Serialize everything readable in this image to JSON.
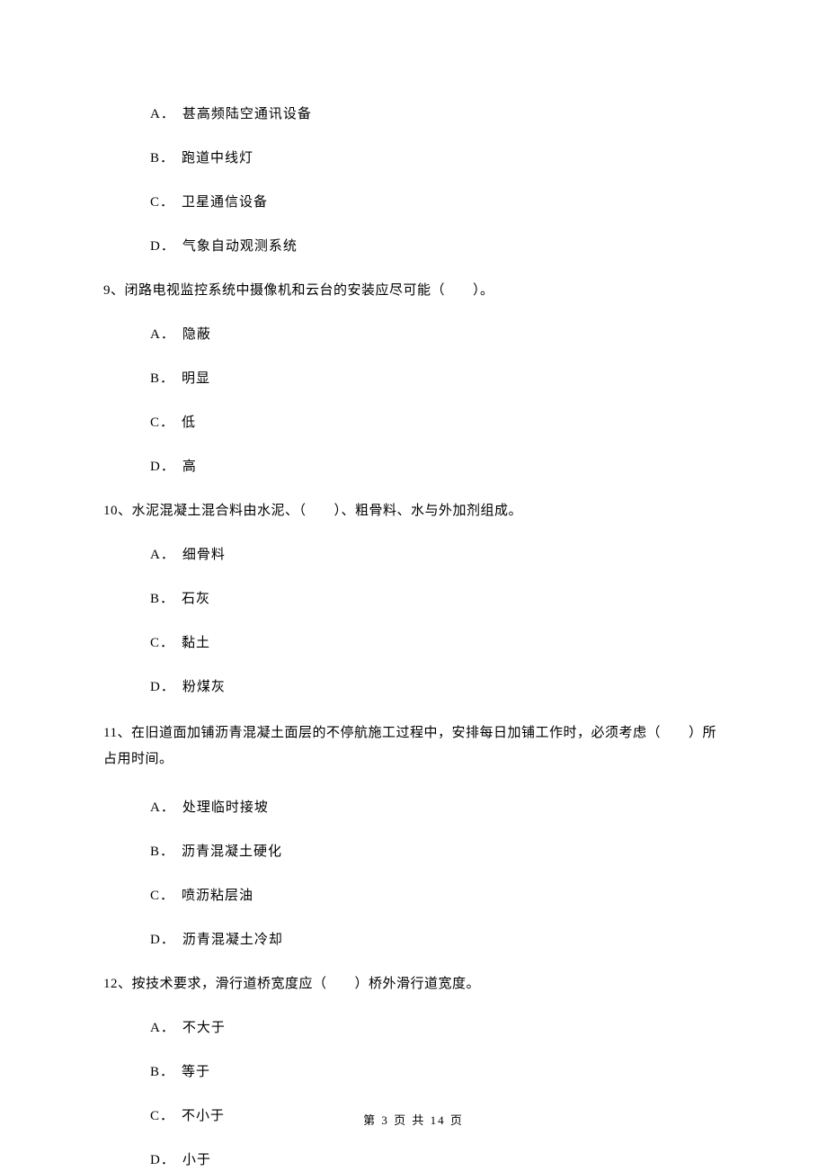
{
  "q8": {
    "options": {
      "A": {
        "letter": "A．",
        "text": "甚高频陆空通讯设备"
      },
      "B": {
        "letter": "B．",
        "text": "跑道中线灯"
      },
      "C": {
        "letter": "C．",
        "text": "卫星通信设备"
      },
      "D": {
        "letter": "D．",
        "text": "气象自动观测系统"
      }
    }
  },
  "q9": {
    "stem": "9、闭路电视监控系统中摄像机和云台的安装应尽可能（　　）。",
    "options": {
      "A": {
        "letter": "A．",
        "text": "隐蔽"
      },
      "B": {
        "letter": "B．",
        "text": "明显"
      },
      "C": {
        "letter": "C．",
        "text": "低"
      },
      "D": {
        "letter": "D．",
        "text": "高"
      }
    }
  },
  "q10": {
    "stem": "10、水泥混凝土混合料由水泥、（　　）、粗骨料、水与外加剂组成。",
    "options": {
      "A": {
        "letter": "A．",
        "text": "细骨料"
      },
      "B": {
        "letter": "B．",
        "text": "石灰"
      },
      "C": {
        "letter": "C．",
        "text": "黏土"
      },
      "D": {
        "letter": "D．",
        "text": "粉煤灰"
      }
    }
  },
  "q11": {
    "stem": "11、在旧道面加铺沥青混凝土面层的不停航施工过程中，安排每日加铺工作时，必须考虑（　　）所占用时间。",
    "options": {
      "A": {
        "letter": "A．",
        "text": "处理临时接坡"
      },
      "B": {
        "letter": "B．",
        "text": "沥青混凝土硬化"
      },
      "C": {
        "letter": "C．",
        "text": "喷沥粘层油"
      },
      "D": {
        "letter": "D．",
        "text": "沥青混凝土冷却"
      }
    }
  },
  "q12": {
    "stem": "12、按技术要求，滑行道桥宽度应（　　）桥外滑行道宽度。",
    "options": {
      "A": {
        "letter": "A．",
        "text": "不大于"
      },
      "B": {
        "letter": "B．",
        "text": "等于"
      },
      "C": {
        "letter": "C．",
        "text": "不小于"
      },
      "D": {
        "letter": "D．",
        "text": "小于"
      }
    }
  },
  "footer": "第 3 页 共 14 页"
}
